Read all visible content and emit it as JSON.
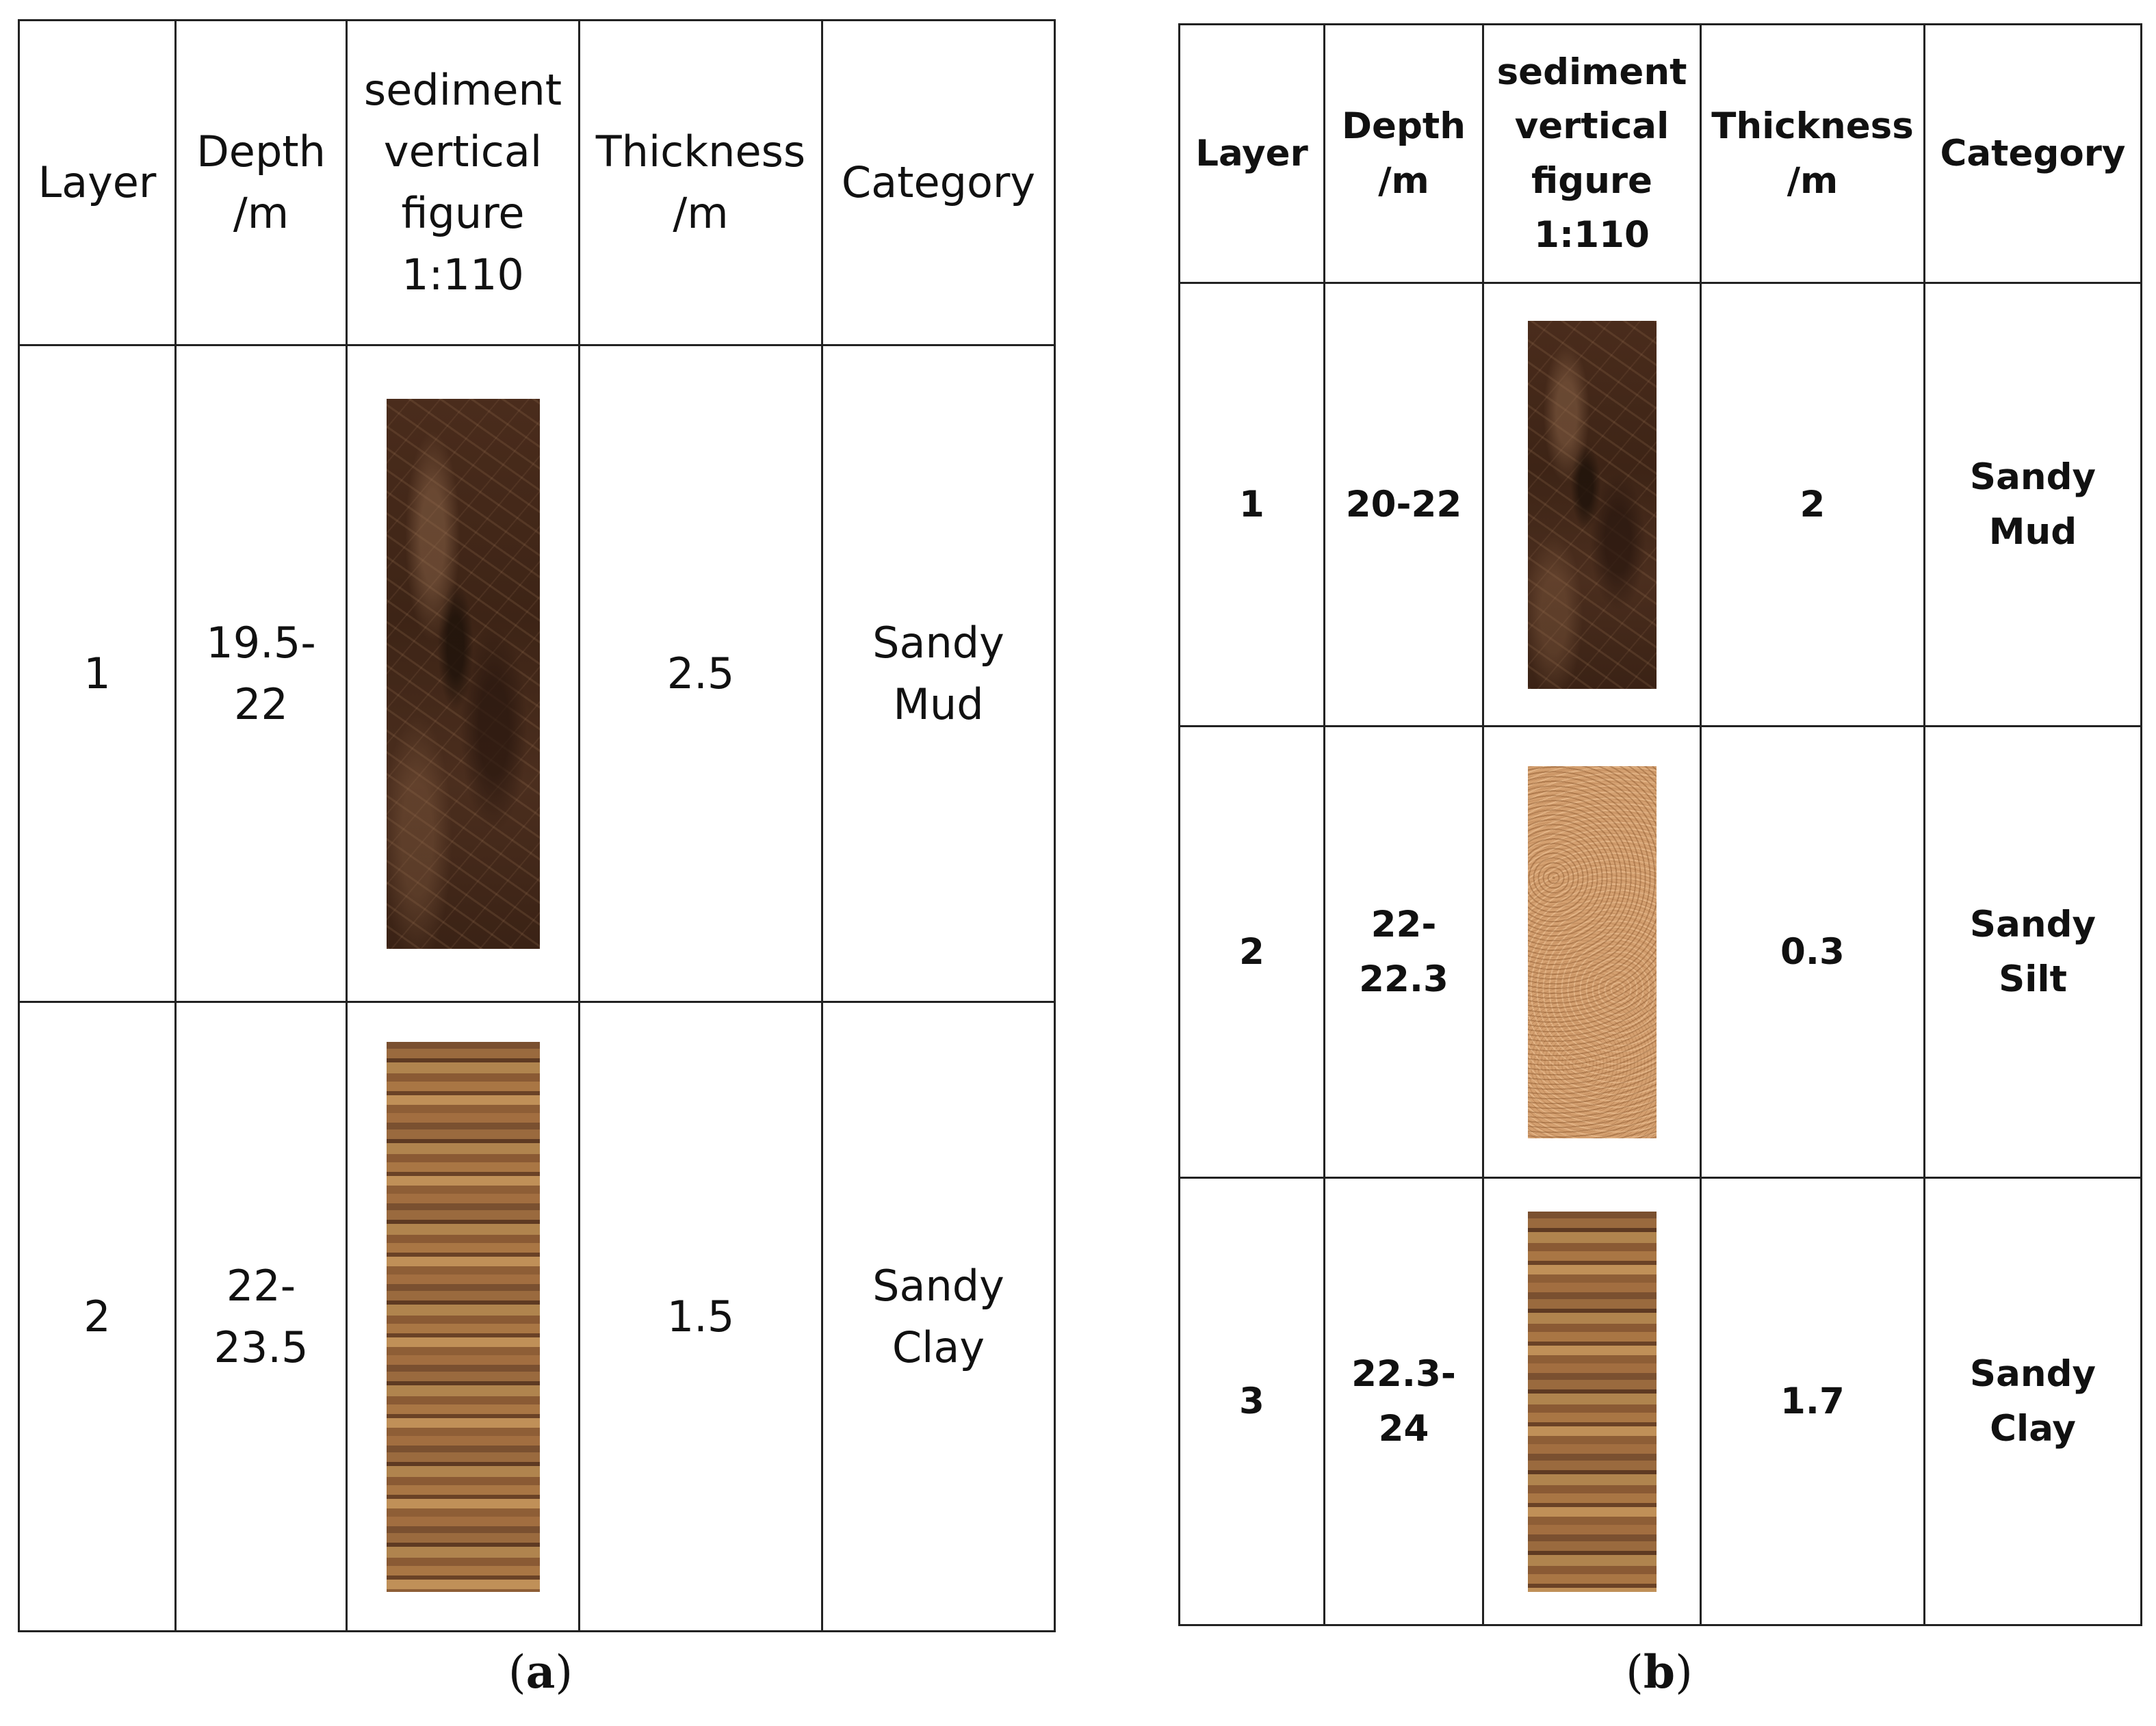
{
  "table_a": {
    "caption_letter": "a",
    "headers": [
      "Layer",
      "Depth\n/m",
      "sediment\nvertical\nfigure\n1:110",
      "Thickness\n/m",
      "Category"
    ],
    "rows": [
      {
        "layer": "1",
        "depth": "19.5-\n22",
        "texture": "sandy-mud-texture",
        "thickness": "2.5",
        "category": "Sandy\nMud"
      },
      {
        "layer": "2",
        "depth": "22-\n23.5",
        "texture": "sandy-clay-texture",
        "thickness": "1.5",
        "category": "Sandy\nClay"
      }
    ]
  },
  "table_b": {
    "caption_letter": "b",
    "headers": [
      "Layer",
      "Depth\n/m",
      "sediment\nvertical\nfigure\n1:110",
      "Thickness\n/m",
      "Category"
    ],
    "rows": [
      {
        "layer": "1",
        "depth": "20-22",
        "texture": "sandy-mud-texture",
        "thickness": "2",
        "category": "Sandy\nMud"
      },
      {
        "layer": "2",
        "depth": "22-\n22.3",
        "texture": "sandy-silt-texture",
        "thickness": "0.3",
        "category": "Sandy\nSilt"
      },
      {
        "layer": "3",
        "depth": "22.3-\n24",
        "texture": "sandy-clay-texture",
        "thickness": "1.7",
        "category": "Sandy\nClay"
      }
    ]
  },
  "colors": {
    "sandy_mud": "#432819",
    "sandy_silt": "#d4a070",
    "sandy_clay": "#8e5e36",
    "border": "#222222"
  }
}
